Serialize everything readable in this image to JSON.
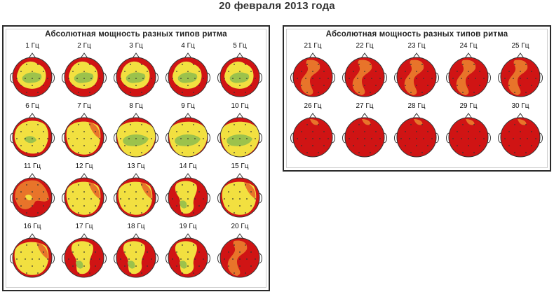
{
  "page": {
    "title": "20 февраля 2013 года"
  },
  "colors": {
    "red": "#d01414",
    "orange": "#e8742a",
    "yellow": "#f2e040",
    "green": "#9cc24c",
    "outline": "#333333"
  },
  "panels": [
    {
      "title": "Абсолютная мощность разных типов ритма",
      "maps": [
        {
          "label": "1 Гц",
          "pattern": "yg"
        },
        {
          "label": "2 Гц",
          "pattern": "yg"
        },
        {
          "label": "3 Гц",
          "pattern": "yg"
        },
        {
          "label": "4 Гц",
          "pattern": "yg"
        },
        {
          "label": "5 Гц",
          "pattern": "yg"
        },
        {
          "label": "6 Гц",
          "pattern": "y"
        },
        {
          "label": "7 Гц",
          "pattern": "ym"
        },
        {
          "label": "8 Гц",
          "pattern": "yG"
        },
        {
          "label": "9 Гц",
          "pattern": "yG"
        },
        {
          "label": "10 Гц",
          "pattern": "yG"
        },
        {
          "label": "11 Гц",
          "pattern": "o"
        },
        {
          "label": "12 Гц",
          "pattern": "ym"
        },
        {
          "label": "13 Гц",
          "pattern": "ym"
        },
        {
          "label": "14 Гц",
          "pattern": "yh"
        },
        {
          "label": "15 Гц",
          "pattern": "ym"
        },
        {
          "label": "16 Гц",
          "pattern": "ym"
        },
        {
          "label": "17 Гц",
          "pattern": "yh"
        },
        {
          "label": "18 Гц",
          "pattern": "yh"
        },
        {
          "label": "19 Гц",
          "pattern": "yh"
        },
        {
          "label": "20 Гц",
          "pattern": "s"
        }
      ]
    },
    {
      "title": "Абсолютная мощность разных типов ритма",
      "maps": [
        {
          "label": "21 Гц",
          "pattern": "s"
        },
        {
          "label": "22 Гц",
          "pattern": "s"
        },
        {
          "label": "23 Гц",
          "pattern": "s"
        },
        {
          "label": "24 Гц",
          "pattern": "s"
        },
        {
          "label": "25 Гц",
          "pattern": "s"
        },
        {
          "label": "26 Гц",
          "pattern": "r"
        },
        {
          "label": "27 Гц",
          "pattern": "r"
        },
        {
          "label": "28 Гц",
          "pattern": "r"
        },
        {
          "label": "29 Гц",
          "pattern": "r"
        },
        {
          "label": "30 Гц",
          "pattern": "r"
        }
      ]
    }
  ]
}
